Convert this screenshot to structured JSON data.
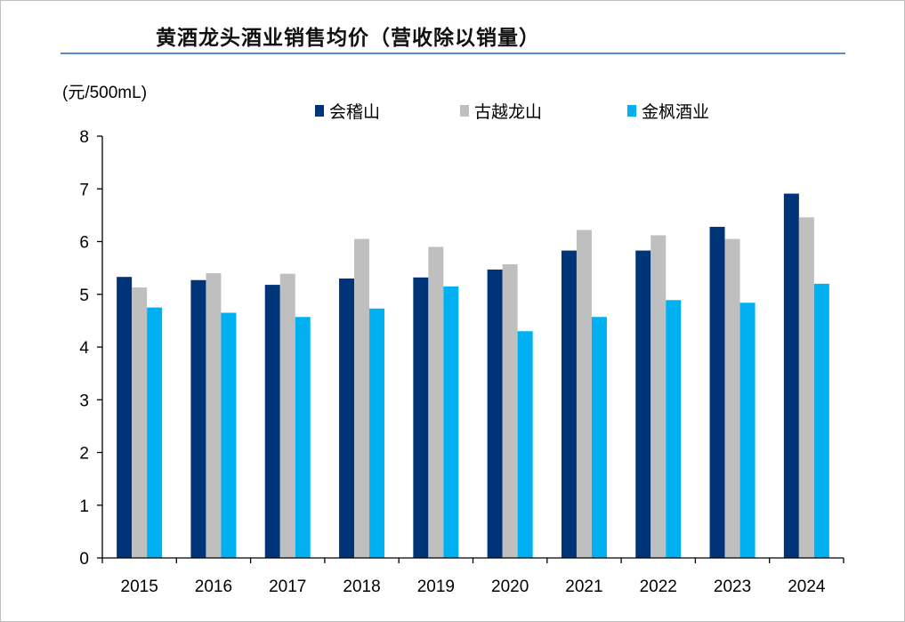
{
  "chart_data": {
    "type": "bar",
    "title": "黄酒龙头酒业销售均价（营收除以销量）",
    "ylabel": "(元/500mL)",
    "xlabel": "",
    "ylim": [
      0,
      8
    ],
    "yticks": [
      0,
      1,
      2,
      3,
      4,
      5,
      6,
      7,
      8
    ],
    "grid": false,
    "legend_position": "top",
    "categories": [
      "2015",
      "2016",
      "2017",
      "2018",
      "2019",
      "2020",
      "2021",
      "2022",
      "2023",
      "2024"
    ],
    "series": [
      {
        "name": "会稽山",
        "color": "#003478",
        "values": [
          5.33,
          5.27,
          5.18,
          5.3,
          5.32,
          5.47,
          5.83,
          5.83,
          6.28,
          6.91
        ]
      },
      {
        "name": "古越龙山",
        "color": "#bfbfbf",
        "values": [
          5.13,
          5.4,
          5.39,
          6.05,
          5.9,
          5.57,
          6.22,
          6.12,
          6.05,
          6.46
        ]
      },
      {
        "name": "金枫酒业",
        "color": "#00b0f0",
        "values": [
          4.75,
          4.65,
          4.57,
          4.73,
          5.15,
          4.3,
          4.57,
          4.89,
          4.84,
          5.2
        ]
      }
    ]
  }
}
